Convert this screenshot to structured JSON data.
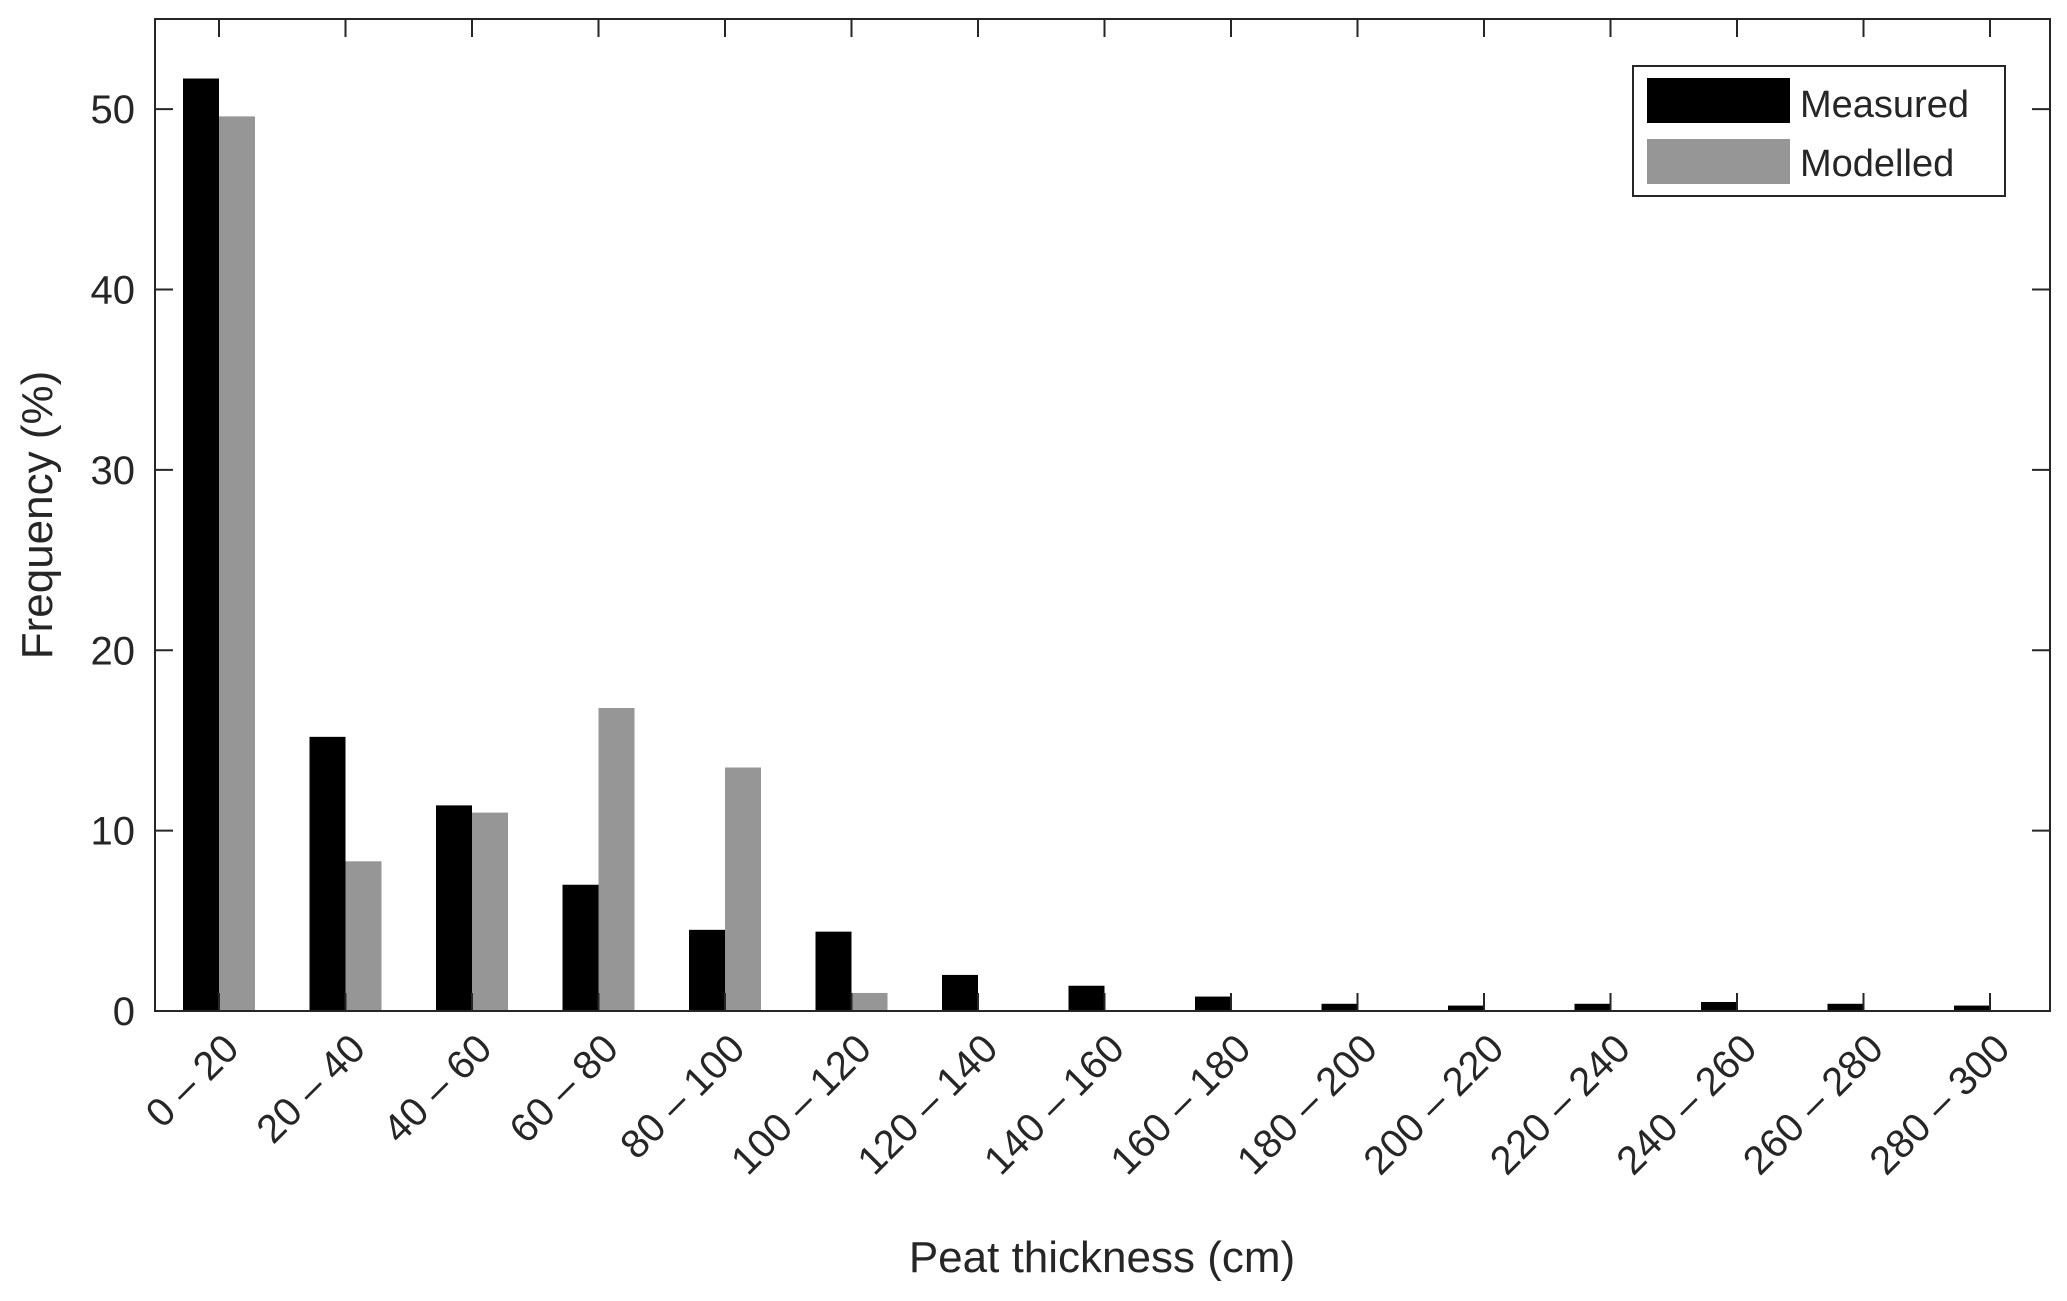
{
  "chart_data": {
    "type": "bar",
    "xlabel": "Peat thickness (cm)",
    "ylabel": "Frequency (%)",
    "ylim": [
      0,
      55
    ],
    "yticks": [
      0,
      10,
      20,
      30,
      40,
      50
    ],
    "grid": false,
    "legend_position": "top-right",
    "categories": [
      "0 – 20",
      "20 – 40",
      "40 – 60",
      "60 – 80",
      "80 – 100",
      "100 – 120",
      "120 – 140",
      "140 – 160",
      "160 – 180",
      "180 – 200",
      "200 – 220",
      "220 – 240",
      "240 – 260",
      "260 – 280",
      "280 – 300"
    ],
    "series": [
      {
        "name": "Measured",
        "color": "#000000",
        "values": [
          51.7,
          15.2,
          11.4,
          7.0,
          4.5,
          4.4,
          2.0,
          1.4,
          0.8,
          0.4,
          0.3,
          0.4,
          0.5,
          0.4,
          0.3
        ]
      },
      {
        "name": "Modelled",
        "color": "#969696",
        "values": [
          49.6,
          8.3,
          11.0,
          16.8,
          13.5,
          1.0,
          0,
          0,
          0,
          0,
          0,
          0,
          0,
          0,
          0
        ]
      }
    ]
  }
}
